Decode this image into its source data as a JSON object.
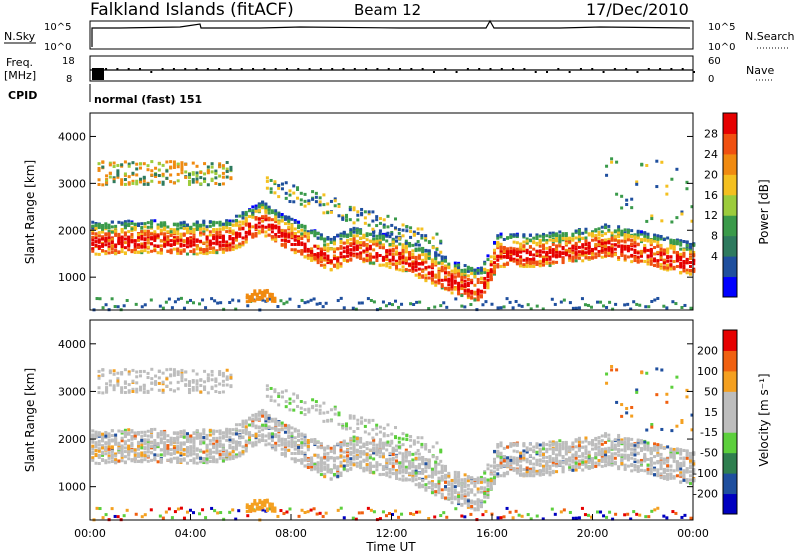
{
  "header": {
    "station": "Falkland Islands (fitACF)",
    "beam": "Beam 12",
    "date": "17/Dec/2010"
  },
  "top_panels": {
    "nsky_label": "N.Sky",
    "nsky_ticks": [
      "10^5",
      "10^0"
    ],
    "nsearch_label": "N.Search",
    "nsearch_ticks": [
      "10^5",
      "10^0"
    ],
    "freq_label": "Freq.",
    "freq_unit": "[MHz]",
    "freq_ticks": [
      "18",
      "8"
    ],
    "nave_label": "Nave",
    "nave_ticks": [
      "60",
      "0"
    ],
    "cpid_label": "CPID",
    "cpid_value": "normal (fast) 151"
  },
  "colors": {
    "power_scale": [
      "#0000ff",
      "#1f4f9e",
      "#2e7a5e",
      "#3a9a4a",
      "#9ccc3c",
      "#f4c020",
      "#f08a10",
      "#f05010",
      "#e60000"
    ],
    "velocity_scale": [
      "#0000c0",
      "#1f4f9e",
      "#2f7f4f",
      "#5ccf3c",
      "#bdbdbd",
      "#bdbdbd",
      "#f4a020",
      "#f06010",
      "#e60000"
    ]
  },
  "chart_data": [
    {
      "type": "heatmap",
      "ylabel": "Slant Range [km]",
      "ylim": [
        300,
        4500
      ],
      "yticks": [
        "4000",
        "3000",
        "2000",
        "1000"
      ],
      "colorbar_label": "Power [dB]",
      "colorbar_ticks": [
        "28",
        "24",
        "20",
        "16",
        "12",
        "8",
        "4"
      ],
      "bands": [
        {
          "x": [
            0,
            2.5,
            3.5,
            5.5,
            6.8,
            7.7,
            8.5,
            9.5,
            10.5,
            12.5,
            14.5,
            15.5,
            16.2,
            18,
            20.5,
            21.5,
            24
          ],
          "y": [
            1750,
            1800,
            1750,
            1800,
            2200,
            1900,
            1700,
            1400,
            1650,
            1400,
            900,
            750,
            1500,
            1500,
            1700,
            1600,
            1300
          ]
        }
      ]
    },
    {
      "type": "heatmap",
      "ylabel": "Slant Range [km]",
      "ylim": [
        300,
        4500
      ],
      "yticks": [
        "4000",
        "3000",
        "2000",
        "1000"
      ],
      "xlabel": "Time UT",
      "xticks": [
        "00:00",
        "04:00",
        "08:00",
        "12:00",
        "16:00",
        "20:00",
        "00:00"
      ],
      "colorbar_label": "Velocity [m s⁻¹]",
      "colorbar_ticks": [
        "200",
        "100",
        "50",
        "15",
        "-15",
        "-50",
        "-100",
        "-200"
      ]
    }
  ]
}
